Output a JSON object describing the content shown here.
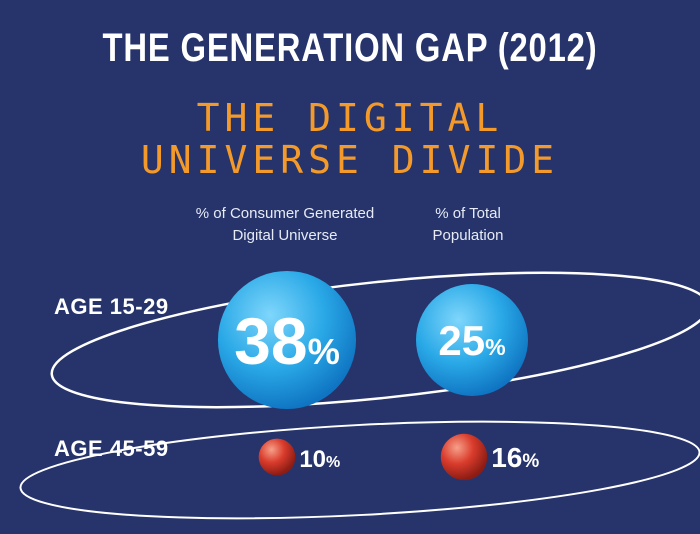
{
  "title": "THE GENERATION GAP (2012)",
  "subtitle_line1": "THE DIGITAL",
  "subtitle_line2": "UNIVERSE DIVIDE",
  "chart_data": {
    "type": "bubble",
    "columns": [
      {
        "line1": "% of Consumer Generated",
        "line2": "Digital Universe"
      },
      {
        "line1": "% of Total",
        "line2": "Population"
      }
    ],
    "rows": [
      {
        "label": "AGE 15-29",
        "values": [
          38,
          25
        ],
        "color": "#29a8e6"
      },
      {
        "label": "AGE 45-59",
        "values": [
          10,
          16
        ],
        "color": "#d8382a"
      }
    ],
    "unit": "%"
  }
}
